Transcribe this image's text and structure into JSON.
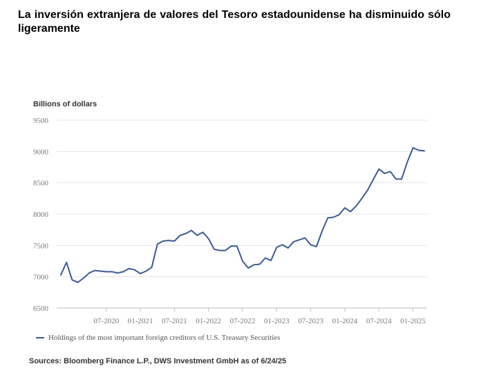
{
  "title": "La inversión extranjera de valores del Tesoro estadounidense ha disminuido sólo ligeramente",
  "source": "Sources: Bloomberg Finance L.P., DWS Investment GmbH as of 6/24/25",
  "colors": {
    "line": "#3a5a92",
    "grid": "#e6e6e6",
    "axis": "#bbbbbb",
    "tick_text": "#777777"
  },
  "chart_data": {
    "type": "line",
    "title": "La inversión extranjera de valores del Tesoro estadounidense ha disminuido sólo ligeramente",
    "ylabel": "Billions of dollars",
    "ylim": [
      6500,
      9500
    ],
    "yticks": [
      9500,
      9000,
      8500,
      8000,
      7500,
      7000,
      6500
    ],
    "x_range": [
      0,
      64
    ],
    "xticks": [
      {
        "x": 8,
        "label": "07-2020"
      },
      {
        "x": 14,
        "label": "01-2021"
      },
      {
        "x": 20,
        "label": "07-2021"
      },
      {
        "x": 26,
        "label": "01-2022"
      },
      {
        "x": 32,
        "label": "07-2022"
      },
      {
        "x": 38,
        "label": "01-2023"
      },
      {
        "x": 44,
        "label": "07-2023"
      },
      {
        "x": 50,
        "label": "01-2024"
      },
      {
        "x": 56,
        "label": "07-2024"
      },
      {
        "x": 62,
        "label": "01-2025"
      }
    ],
    "legend_position": "bottom-left",
    "series": [
      {
        "name": "Holdings of the most important foreign creditors of U.S. Treasury Securities",
        "x": [
          0,
          1,
          2,
          3,
          4,
          5,
          6,
          7,
          8,
          9,
          10,
          11,
          12,
          13,
          14,
          15,
          16,
          17,
          18,
          19,
          20,
          21,
          22,
          23,
          24,
          25,
          26,
          27,
          28,
          29,
          30,
          31,
          32,
          33,
          34,
          35,
          36,
          37,
          38,
          39,
          40,
          41,
          42,
          43,
          44,
          45,
          46,
          47,
          48,
          49,
          50,
          51,
          52,
          53,
          54,
          55,
          56,
          57,
          58,
          59,
          60,
          61,
          62,
          63,
          64
        ],
        "values": [
          7030,
          7230,
          6950,
          6910,
          6980,
          7060,
          7100,
          7090,
          7080,
          7080,
          7060,
          7080,
          7130,
          7110,
          7050,
          7090,
          7150,
          7520,
          7570,
          7580,
          7570,
          7660,
          7690,
          7740,
          7660,
          7710,
          7610,
          7440,
          7420,
          7420,
          7490,
          7490,
          7250,
          7140,
          7190,
          7200,
          7300,
          7260,
          7470,
          7510,
          7460,
          7560,
          7590,
          7620,
          7510,
          7480,
          7730,
          7940,
          7950,
          7990,
          8100,
          8040,
          8130,
          8250,
          8380,
          8550,
          8720,
          8650,
          8680,
          8560,
          8560,
          8830,
          9060,
          9020,
          9010
        ]
      }
    ]
  }
}
